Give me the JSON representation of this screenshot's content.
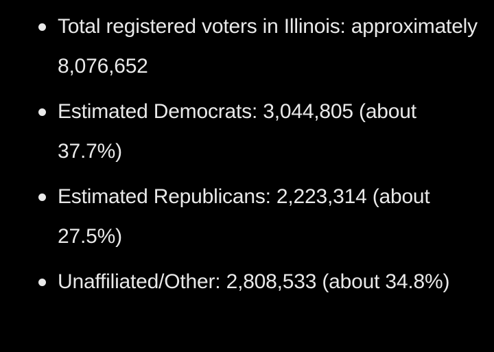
{
  "list": {
    "items": [
      "Total registered voters in Illinois: approximately 8,076,652",
      "Estimated Democrats: 3,044,805 (about 37.7%)",
      "Estimated Republicans: 2,223,314 (about 27.5%)",
      "Unaffiliated/Other: 2,808,533 (about 34.8%)"
    ]
  },
  "colors": {
    "background": "#000000",
    "text": "#e9e9e9"
  }
}
